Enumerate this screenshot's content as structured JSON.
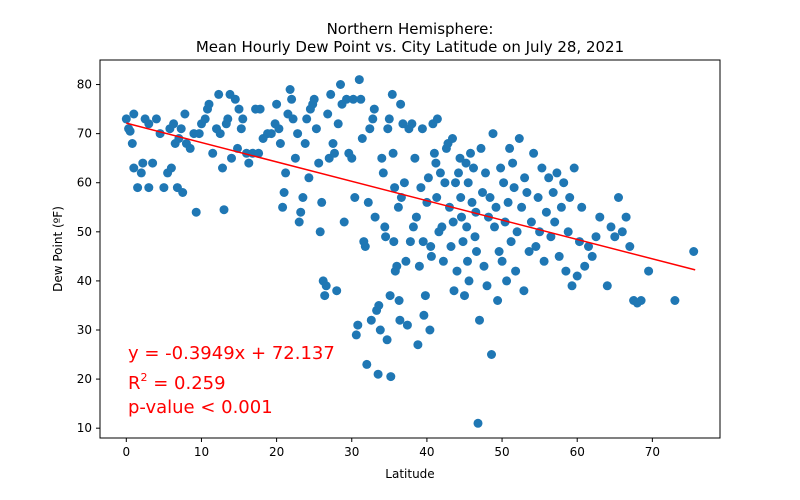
{
  "chart_data": {
    "type": "scatter",
    "title": [
      "Northern Hemisphere:",
      "Mean Hourly Dew Point vs. City Latitude  on July 28, 2021"
    ],
    "xlabel": "Latitude",
    "ylabel": "Dew Point (ºF)",
    "xlim": [
      -3.5,
      79
    ],
    "ylim": [
      8,
      85
    ],
    "xticks": [
      0,
      10,
      20,
      30,
      40,
      50,
      60,
      70
    ],
    "yticks": [
      10,
      20,
      30,
      40,
      50,
      60,
      70,
      80
    ],
    "grid": false,
    "point_color": "#1f77b4",
    "fit_color": "#ff0000",
    "regression": {
      "slope": -0.3949,
      "intercept": 72.137,
      "x_range": [
        0,
        75.7
      ]
    },
    "annotations": {
      "equation": "y = -0.3949x + 72.137",
      "r_squared_prefix": "R",
      "r_squared_sup": "2",
      "r_squared_value": " = 0.259",
      "p_value": "p-value < 0.001"
    },
    "points": [
      [
        0,
        73
      ],
      [
        0.3,
        71
      ],
      [
        0.5,
        70.5
      ],
      [
        1,
        74
      ],
      [
        0.8,
        68
      ],
      [
        1,
        63
      ],
      [
        1.5,
        59
      ],
      [
        2,
        62
      ],
      [
        2.2,
        64
      ],
      [
        2.5,
        73
      ],
      [
        3,
        59
      ],
      [
        3,
        72
      ],
      [
        3.5,
        64
      ],
      [
        4,
        73
      ],
      [
        4.5,
        70
      ],
      [
        5,
        59
      ],
      [
        5.5,
        62
      ],
      [
        5.8,
        71
      ],
      [
        6,
        63
      ],
      [
        6.3,
        72
      ],
      [
        6.5,
        68
      ],
      [
        6.8,
        59
      ],
      [
        7,
        69
      ],
      [
        7.3,
        71
      ],
      [
        7.5,
        58
      ],
      [
        7.8,
        74
      ],
      [
        8,
        68
      ],
      [
        8.5,
        67
      ],
      [
        9,
        70
      ],
      [
        9.3,
        54
      ],
      [
        9.7,
        70
      ],
      [
        10,
        72
      ],
      [
        10.5,
        73
      ],
      [
        10.8,
        75
      ],
      [
        11,
        76
      ],
      [
        11.5,
        66
      ],
      [
        12,
        71
      ],
      [
        12.3,
        78
      ],
      [
        12.5,
        70
      ],
      [
        12.8,
        63
      ],
      [
        13,
        54.5
      ],
      [
        13.3,
        72
      ],
      [
        13.5,
        73
      ],
      [
        13.8,
        78
      ],
      [
        14,
        65
      ],
      [
        14.5,
        77
      ],
      [
        14.8,
        67
      ],
      [
        15,
        75
      ],
      [
        15.3,
        71
      ],
      [
        15.5,
        73
      ],
      [
        16,
        66
      ],
      [
        16.3,
        64
      ],
      [
        16.8,
        66
      ],
      [
        17.2,
        75
      ],
      [
        17.6,
        66
      ],
      [
        17.8,
        75
      ],
      [
        18.2,
        69
      ],
      [
        18.8,
        70
      ],
      [
        19.3,
        70
      ],
      [
        19.8,
        72
      ],
      [
        20,
        76
      ],
      [
        20.3,
        71
      ],
      [
        20.5,
        68
      ],
      [
        20.8,
        55
      ],
      [
        21,
        58
      ],
      [
        21.2,
        62
      ],
      [
        21.5,
        74
      ],
      [
        21.8,
        79
      ],
      [
        22,
        77
      ],
      [
        22.2,
        73
      ],
      [
        22.5,
        65
      ],
      [
        22.8,
        70
      ],
      [
        23,
        52
      ],
      [
        23.2,
        54
      ],
      [
        23.5,
        57
      ],
      [
        23.8,
        68
      ],
      [
        24,
        73
      ],
      [
        24.3,
        61
      ],
      [
        24.5,
        75
      ],
      [
        24.8,
        76
      ],
      [
        25,
        77
      ],
      [
        25.3,
        71
      ],
      [
        25.6,
        64
      ],
      [
        25.8,
        50
      ],
      [
        26,
        56
      ],
      [
        26.2,
        40
      ],
      [
        26.4,
        37
      ],
      [
        26.6,
        39
      ],
      [
        26.8,
        74
      ],
      [
        27,
        65
      ],
      [
        27.2,
        78
      ],
      [
        27.5,
        68
      ],
      [
        27.7,
        66
      ],
      [
        28,
        38
      ],
      [
        28.2,
        72
      ],
      [
        28.5,
        80
      ],
      [
        28.7,
        76
      ],
      [
        29,
        52
      ],
      [
        29.3,
        77
      ],
      [
        29.6,
        66
      ],
      [
        30,
        65
      ],
      [
        30.2,
        77
      ],
      [
        30.4,
        57
      ],
      [
        30.6,
        29
      ],
      [
        30.8,
        31
      ],
      [
        31,
        81
      ],
      [
        31.2,
        77
      ],
      [
        31.4,
        69
      ],
      [
        31.6,
        48
      ],
      [
        31.8,
        47
      ],
      [
        32,
        23
      ],
      [
        32.2,
        56
      ],
      [
        32.4,
        71
      ],
      [
        32.6,
        32
      ],
      [
        32.8,
        73
      ],
      [
        33,
        75
      ],
      [
        33.1,
        53
      ],
      [
        33.3,
        34
      ],
      [
        33.5,
        21
      ],
      [
        33.6,
        35
      ],
      [
        33.8,
        30
      ],
      [
        34,
        65
      ],
      [
        34.2,
        62
      ],
      [
        34.4,
        51
      ],
      [
        34.5,
        49
      ],
      [
        34.7,
        28
      ],
      [
        34.8,
        71
      ],
      [
        35,
        73
      ],
      [
        35.1,
        37
      ],
      [
        35.2,
        20.5
      ],
      [
        35.4,
        78
      ],
      [
        35.5,
        66
      ],
      [
        35.6,
        48
      ],
      [
        35.7,
        59
      ],
      [
        35.8,
        42
      ],
      [
        36,
        43
      ],
      [
        36.2,
        55
      ],
      [
        36.3,
        36
      ],
      [
        36.4,
        32
      ],
      [
        36.5,
        76
      ],
      [
        36.6,
        57
      ],
      [
        36.8,
        72
      ],
      [
        37,
        60
      ],
      [
        37.2,
        44
      ],
      [
        37.4,
        31
      ],
      [
        37.6,
        71
      ],
      [
        37.8,
        48
      ],
      [
        38,
        72
      ],
      [
        38.2,
        51
      ],
      [
        38.4,
        65
      ],
      [
        38.6,
        53
      ],
      [
        38.8,
        27
      ],
      [
        39,
        43
      ],
      [
        39.2,
        59
      ],
      [
        39.4,
        71
      ],
      [
        39.5,
        48
      ],
      [
        39.6,
        33
      ],
      [
        39.8,
        37
      ],
      [
        40,
        56
      ],
      [
        40.2,
        61
      ],
      [
        40.4,
        30
      ],
      [
        40.5,
        47
      ],
      [
        40.6,
        45
      ],
      [
        40.8,
        72
      ],
      [
        41,
        66
      ],
      [
        41.2,
        64
      ],
      [
        41.3,
        57
      ],
      [
        41.4,
        73
      ],
      [
        41.6,
        50
      ],
      [
        41.8,
        62
      ],
      [
        42,
        51
      ],
      [
        42.2,
        44
      ],
      [
        42.4,
        60
      ],
      [
        42.6,
        67
      ],
      [
        42.8,
        68
      ],
      [
        43,
        55
      ],
      [
        43.2,
        47
      ],
      [
        43.4,
        69
      ],
      [
        43.5,
        52
      ],
      [
        43.6,
        38
      ],
      [
        43.8,
        60
      ],
      [
        44,
        42
      ],
      [
        44.2,
        62
      ],
      [
        44.4,
        65
      ],
      [
        44.5,
        57
      ],
      [
        44.6,
        53
      ],
      [
        44.8,
        48
      ],
      [
        45,
        37
      ],
      [
        45.2,
        64
      ],
      [
        45.3,
        51
      ],
      [
        45.4,
        44
      ],
      [
        45.5,
        60
      ],
      [
        45.6,
        40
      ],
      [
        45.8,
        66
      ],
      [
        46,
        56
      ],
      [
        46.2,
        63
      ],
      [
        46.4,
        49
      ],
      [
        46.5,
        54
      ],
      [
        46.6,
        46
      ],
      [
        46.8,
        11
      ],
      [
        47,
        32
      ],
      [
        47.2,
        67
      ],
      [
        47.4,
        58
      ],
      [
        47.6,
        43
      ],
      [
        47.8,
        62
      ],
      [
        48,
        39
      ],
      [
        48.2,
        53
      ],
      [
        48.4,
        57
      ],
      [
        48.6,
        25
      ],
      [
        48.8,
        70
      ],
      [
        49,
        51
      ],
      [
        49.2,
        55
      ],
      [
        49.4,
        36
      ],
      [
        49.6,
        46
      ],
      [
        49.8,
        63
      ],
      [
        50,
        44
      ],
      [
        50.2,
        60
      ],
      [
        50.4,
        52
      ],
      [
        50.6,
        40
      ],
      [
        50.8,
        56
      ],
      [
        51,
        67
      ],
      [
        51.2,
        48
      ],
      [
        51.4,
        64
      ],
      [
        51.6,
        59
      ],
      [
        51.8,
        42
      ],
      [
        52,
        50
      ],
      [
        52.3,
        69
      ],
      [
        52.6,
        55
      ],
      [
        52.9,
        38
      ],
      [
        53,
        61
      ],
      [
        53.3,
        58
      ],
      [
        53.6,
        46
      ],
      [
        53.9,
        52
      ],
      [
        54.2,
        66
      ],
      [
        54.5,
        47
      ],
      [
        54.8,
        57
      ],
      [
        55,
        50
      ],
      [
        55.3,
        63
      ],
      [
        55.6,
        44
      ],
      [
        55.9,
        54
      ],
      [
        56.2,
        61
      ],
      [
        56.5,
        49
      ],
      [
        56.8,
        58
      ],
      [
        57,
        52
      ],
      [
        57.3,
        62
      ],
      [
        57.6,
        45
      ],
      [
        57.9,
        55
      ],
      [
        58.2,
        60
      ],
      [
        58.5,
        42
      ],
      [
        58.8,
        50
      ],
      [
        59,
        57
      ],
      [
        59.3,
        39
      ],
      [
        59.6,
        63
      ],
      [
        60,
        41
      ],
      [
        60.3,
        48
      ],
      [
        60.6,
        55
      ],
      [
        61,
        43
      ],
      [
        61.5,
        47
      ],
      [
        62,
        45
      ],
      [
        62.5,
        49
      ],
      [
        63,
        53
      ],
      [
        64,
        39
      ],
      [
        64.5,
        51
      ],
      [
        65,
        49
      ],
      [
        65.5,
        57
      ],
      [
        66,
        50
      ],
      [
        66.5,
        53
      ],
      [
        67,
        47
      ],
      [
        67.5,
        36
      ],
      [
        68,
        35.5
      ],
      [
        68.5,
        36
      ],
      [
        69.5,
        42
      ],
      [
        73,
        36
      ],
      [
        75.5,
        46
      ]
    ]
  }
}
